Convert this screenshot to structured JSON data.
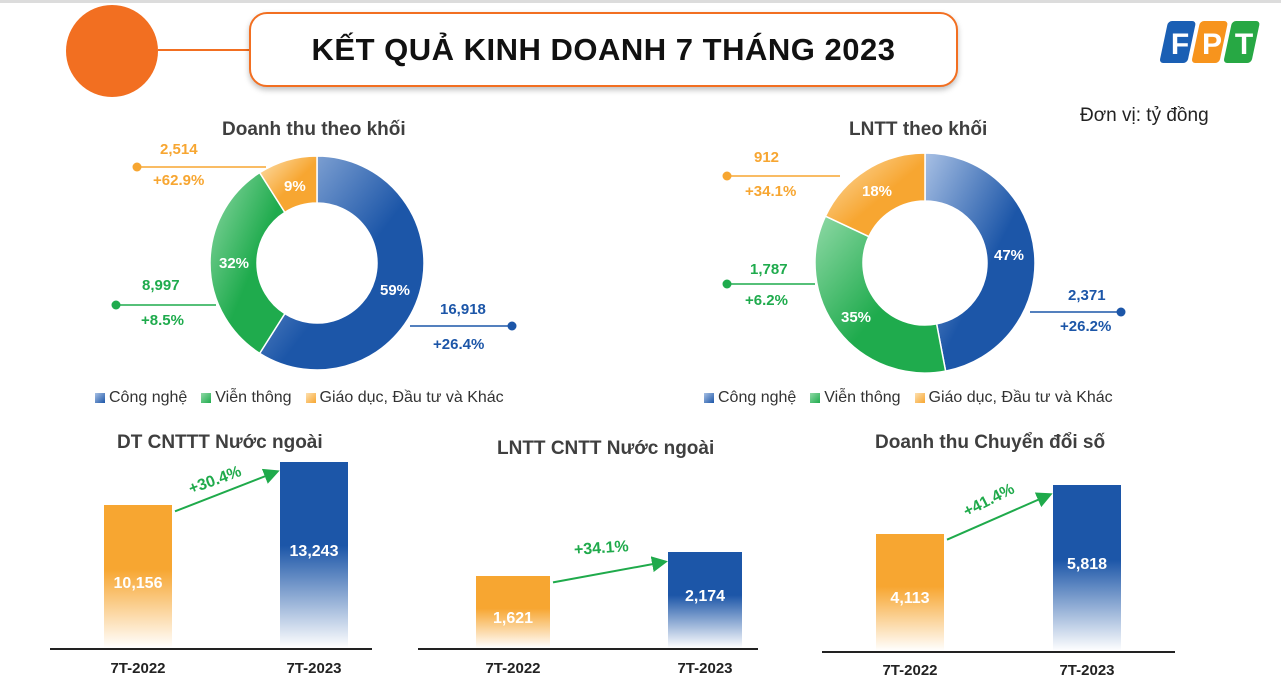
{
  "header": {
    "title": "KẾT QUẢ KINH DOANH 7 THÁNG 2023"
  },
  "logo": {
    "letters": [
      "F",
      "P",
      "T"
    ],
    "colors": [
      "#1a5fb4",
      "#f7941d",
      "#27a844"
    ]
  },
  "unit_label": "Đơn vị: tỷ đồng",
  "colors": {
    "cong_nghe": "#1c56a8",
    "vien_thong": "#1fab4d",
    "giao_duc": "#f7a631",
    "accent": "#f26f21"
  },
  "donut_legend": [
    "Công nghệ",
    "Viễn thông",
    "Giáo dục, Đầu tư và Khác"
  ],
  "chart_data": [
    {
      "type": "pie",
      "title": "Doanh thu theo khối",
      "categories": [
        "Công nghệ",
        "Viễn thông",
        "Giáo dục, Đầu tư và Khác"
      ],
      "percent_labels": [
        "59%",
        "32%",
        "9%"
      ],
      "shares": [
        59,
        32,
        9
      ],
      "values_label": [
        "16,918",
        "8,997",
        "2,514"
      ],
      "growth_label": [
        "+26.4%",
        "+8.5%",
        "+62.9%"
      ],
      "legend": "bottom"
    },
    {
      "type": "pie",
      "title": "LNTT theo khối",
      "categories": [
        "Công nghệ",
        "Viễn thông",
        "Giáo dục, Đầu tư và Khác"
      ],
      "percent_labels": [
        "47%",
        "35%",
        "18%"
      ],
      "shares": [
        47,
        35,
        18
      ],
      "values_label": [
        "2,371",
        "1,787",
        "912"
      ],
      "growth_label": [
        "+26.2%",
        "+6.2%",
        "+34.1%"
      ],
      "legend": "bottom"
    },
    {
      "type": "bar",
      "title": "DT CNTTT Nước ngoài",
      "categories": [
        "7T-2022",
        "7T-2023"
      ],
      "values": [
        10156,
        13243
      ],
      "value_labels": [
        "10,156",
        "13,243"
      ],
      "growth": "+30.4%"
    },
    {
      "type": "bar",
      "title": "LNTT CNTT Nước ngoài",
      "categories": [
        "7T-2022",
        "7T-2023"
      ],
      "values": [
        1621,
        2174
      ],
      "value_labels": [
        "1,621",
        "2,174"
      ],
      "growth": "+34.1%"
    },
    {
      "type": "bar",
      "title": "Doanh thu Chuyển đổi số",
      "categories": [
        "7T-2022",
        "7T-2023"
      ],
      "values": [
        4113,
        5818
      ],
      "value_labels": [
        "4,113",
        "5,818"
      ],
      "growth": "+41.4%"
    }
  ]
}
